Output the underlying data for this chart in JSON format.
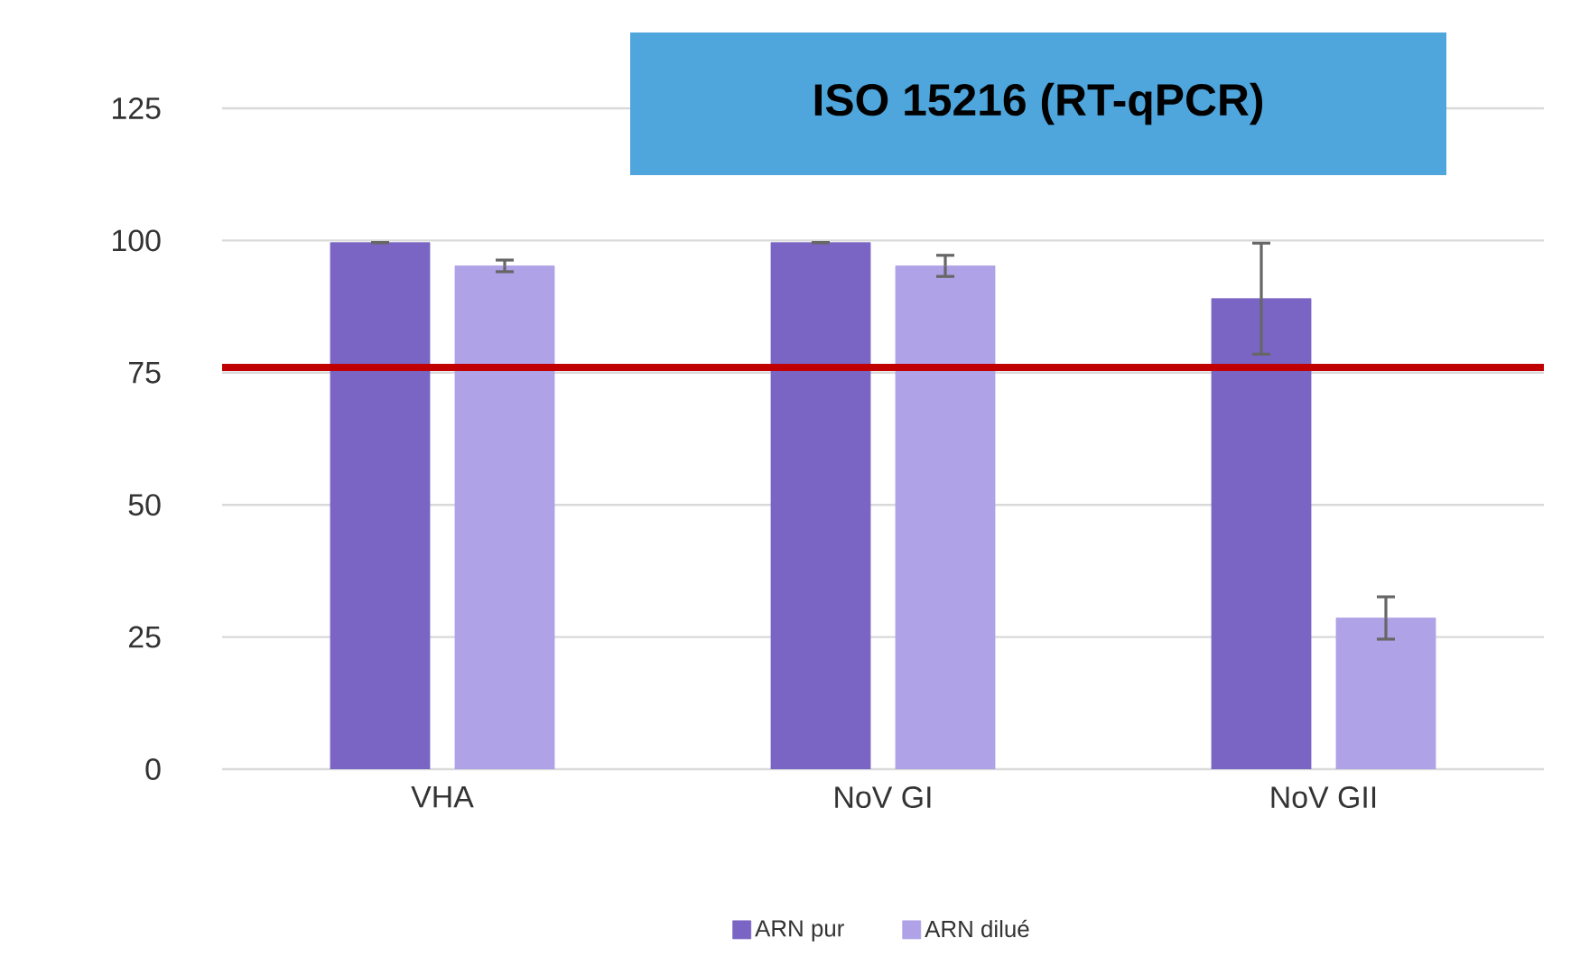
{
  "chart_data": {
    "type": "bar",
    "title": "ISO 15216 (RT-qPCR)",
    "categories": [
      "VHA",
      "NoV GI",
      "NoV GII"
    ],
    "series": [
      {
        "name": "ARN pur",
        "color": "#7a65c4",
        "values": [
          99.6,
          99.6,
          89
        ],
        "errors": [
          0,
          0,
          10.5
        ]
      },
      {
        "name": "ARN dilué",
        "color": "#afa2e6",
        "values": [
          95.2,
          95.2,
          28.6
        ],
        "errors": [
          1.1,
          2,
          4
        ]
      }
    ],
    "ylim": [
      0,
      125
    ],
    "yticks": [
      0,
      25,
      50,
      75,
      100,
      125
    ],
    "grid": "y",
    "legend": "bottom",
    "ref_lines": [
      {
        "axis": "y",
        "value": 76,
        "color": "#c00000"
      }
    ]
  }
}
